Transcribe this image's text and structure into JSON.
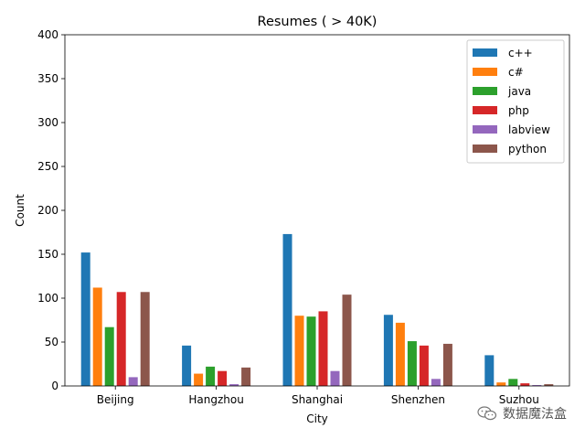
{
  "chart_data": {
    "type": "bar",
    "title": "Resumes ( > 40K)",
    "xlabel": "City",
    "ylabel": "Count",
    "ylim": [
      0,
      400
    ],
    "yticks": [
      0,
      50,
      100,
      150,
      200,
      250,
      300,
      350,
      400
    ],
    "categories": [
      "Beijing",
      "Hangzhou",
      "Shanghai",
      "Shenzhen",
      "Suzhou"
    ],
    "series": [
      {
        "name": "c++",
        "color": "#1f77b4",
        "values": [
          152,
          46,
          173,
          81,
          35
        ]
      },
      {
        "name": "c#",
        "color": "#ff7f0e",
        "values": [
          112,
          14,
          80,
          72,
          4
        ]
      },
      {
        "name": "java",
        "color": "#2ca02c",
        "values": [
          67,
          22,
          79,
          51,
          8
        ]
      },
      {
        "name": "php",
        "color": "#d62728",
        "values": [
          107,
          17,
          85,
          46,
          3
        ]
      },
      {
        "name": "labview",
        "color": "#9467bd",
        "values": [
          10,
          2,
          17,
          8,
          1
        ]
      },
      {
        "name": "python",
        "color": "#8c564b",
        "values": [
          107,
          21,
          104,
          48,
          2
        ]
      }
    ],
    "legend_position": "top-right",
    "grid": false
  },
  "watermark": {
    "text": "数据魔法盒",
    "icon": "wechat-icon"
  }
}
